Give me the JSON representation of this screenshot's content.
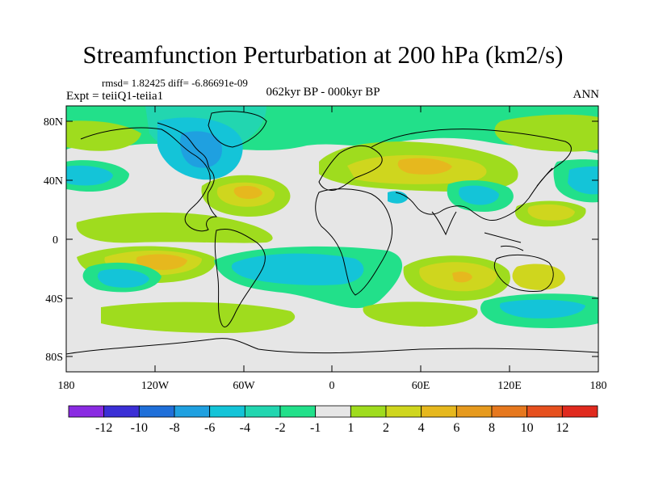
{
  "title": "Streamfunction Perturbation at 200 hPa (km2/s)",
  "stats": "rmsd= 1.82425 diff= -6.86691e-09",
  "experiment": "Expt = teiiQ1-teiia1",
  "period": "062kyr BP - 000kyr BP",
  "season": "ANN",
  "lat_labels": [
    "80N",
    "40N",
    "0",
    "40S",
    "80S"
  ],
  "lon_labels": [
    "180",
    "120W",
    "60W",
    "0",
    "60E",
    "120E",
    "180"
  ],
  "colorbar": {
    "labels": [
      "-12",
      "-10",
      "-8",
      "-6",
      "-4",
      "-2",
      "-1",
      "1",
      "2",
      "4",
      "6",
      "8",
      "10",
      "12"
    ],
    "colors": [
      "#8a2be2",
      "#3b2fd6",
      "#1f6fd9",
      "#1fa0e0",
      "#14c4d8",
      "#22d6b0",
      "#22e08a",
      "#e6e6e6",
      "#9fdc1e",
      "#cfd61e",
      "#e6b81e",
      "#e69a1e",
      "#e6781e",
      "#e6501e",
      "#e02a1e"
    ]
  },
  "map_colors": {
    "neutral": "#e6e6e6",
    "pos1": "#9fdc1e",
    "pos2": "#cfd61e",
    "pos3": "#e6b81e",
    "neg1": "#22e08a",
    "neg2": "#22d6b0",
    "neg3": "#14c4d8",
    "neg4": "#1fa0e0"
  }
}
